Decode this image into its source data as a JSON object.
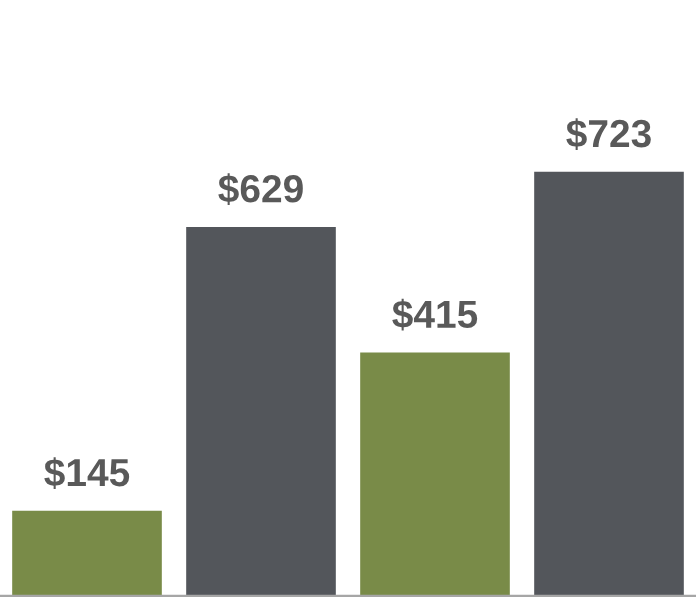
{
  "chart_data": {
    "type": "bar",
    "categories": [
      null,
      null,
      null,
      null
    ],
    "values": [
      145,
      629,
      415,
      723
    ],
    "colors": [
      "#798b48",
      "#53565b",
      "#798b48",
      "#53565b"
    ],
    "value_labels": [
      "$145",
      "$629",
      "$415",
      "$723"
    ]
  }
}
